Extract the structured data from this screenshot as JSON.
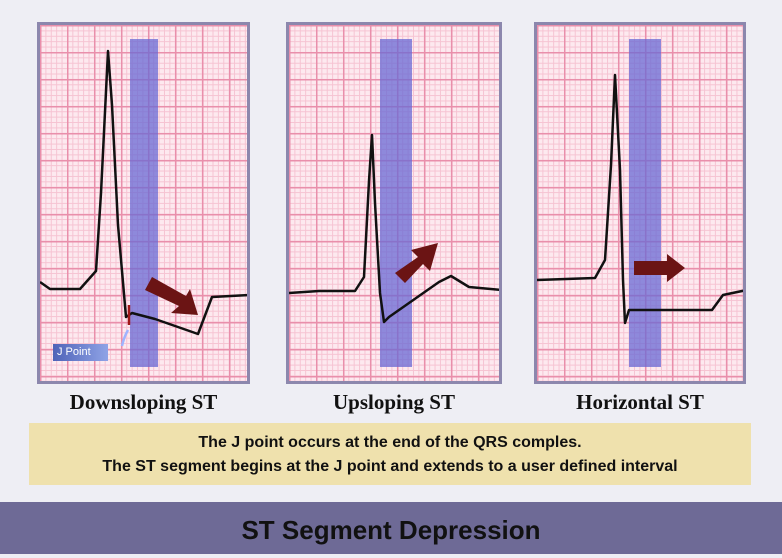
{
  "panels": [
    {
      "label": "Downsloping ST"
    },
    {
      "label": "Upsloping ST"
    },
    {
      "label": "Horizontal ST"
    }
  ],
  "j_point_label": "J Point",
  "note": {
    "line1": "The J point occurs at the end of the QRS comples.",
    "line2": "The ST segment begins at the J point and extends to a user defined interval"
  },
  "footer_title": "ST Segment Depression",
  "colors": {
    "st_band": "#6868d4",
    "arrow": "#6b1414",
    "footer_bg": "#6e6a96",
    "note_bg": "#efe1ad"
  }
}
